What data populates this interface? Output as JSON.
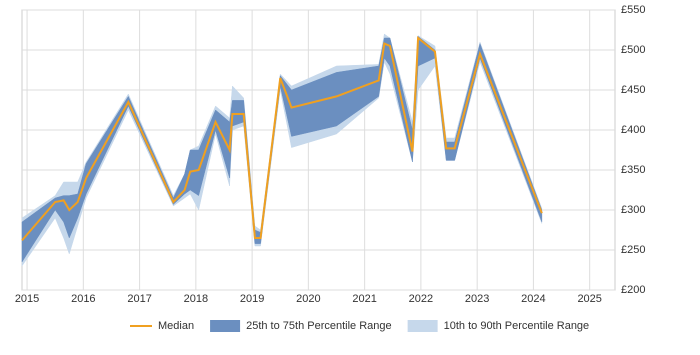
{
  "chart_data": {
    "type": "range-line",
    "x": [
      2014.91,
      2015.5,
      2015.65,
      2015.75,
      2015.9,
      2016.05,
      2016.8,
      2017.6,
      2017.8,
      2017.9,
      2018.05,
      2018.35,
      2018.6,
      2018.65,
      2018.85,
      2019.05,
      2019.15,
      2019.5,
      2019.7,
      2020.5,
      2021.25,
      2021.35,
      2021.45,
      2021.85,
      2021.95,
      2022.25,
      2022.45,
      2022.6,
      2023.05,
      2024.15
    ],
    "series": [
      {
        "name": "10th to 90th Percentile Range",
        "color": "#c6d8eb",
        "low": [
          230,
          290,
          265,
          245,
          280,
          315,
          425,
          305,
          315,
          320,
          300,
          395,
          330,
          400,
          405,
          255,
          255,
          450,
          378,
          395,
          440,
          485,
          470,
          360,
          450,
          480,
          362,
          362,
          485,
          283
        ],
        "high": [
          290,
          318,
          335,
          335,
          335,
          360,
          445,
          318,
          345,
          375,
          380,
          430,
          415,
          455,
          440,
          280,
          275,
          470,
          455,
          480,
          482,
          520,
          515,
          410,
          518,
          505,
          390,
          390,
          510,
          302
        ]
      },
      {
        "name": "25th to 75th Percentile Range",
        "color": "#6b8fc0",
        "low": [
          235,
          300,
          285,
          265,
          290,
          320,
          430,
          307,
          320,
          325,
          318,
          400,
          340,
          405,
          410,
          258,
          258,
          455,
          392,
          405,
          442,
          490,
          480,
          360,
          480,
          490,
          362,
          362,
          490,
          285
        ],
        "high": [
          285,
          315,
          318,
          318,
          320,
          358,
          442,
          315,
          345,
          375,
          375,
          425,
          410,
          437,
          437,
          275,
          272,
          468,
          450,
          472,
          480,
          515,
          515,
          400,
          517,
          500,
          385,
          385,
          508,
          300
        ]
      },
      {
        "name": "Median",
        "color": "#f0a020",
        "values": [
          262,
          310,
          312,
          300,
          310,
          340,
          435,
          310,
          325,
          348,
          350,
          410,
          375,
          420,
          420,
          265,
          265,
          465,
          428,
          442,
          462,
          508,
          505,
          373,
          515,
          498,
          377,
          377,
          495,
          296
        ]
      }
    ],
    "xlim": [
      2014.91,
      2025.45
    ],
    "xticks": [
      2015,
      2016,
      2017,
      2018,
      2019,
      2020,
      2021,
      2022,
      2023,
      2024,
      2025
    ],
    "ylim": [
      200,
      550
    ],
    "yticks": [
      {
        "value": 200,
        "label": "£200"
      },
      {
        "value": 250,
        "label": "£250"
      },
      {
        "value": 300,
        "label": "£300"
      },
      {
        "value": 350,
        "label": "£350"
      },
      {
        "value": 400,
        "label": "£400"
      },
      {
        "value": 450,
        "label": "£450"
      },
      {
        "value": 500,
        "label": "£500"
      },
      {
        "value": 550,
        "label": "£550"
      }
    ],
    "grid": true
  }
}
